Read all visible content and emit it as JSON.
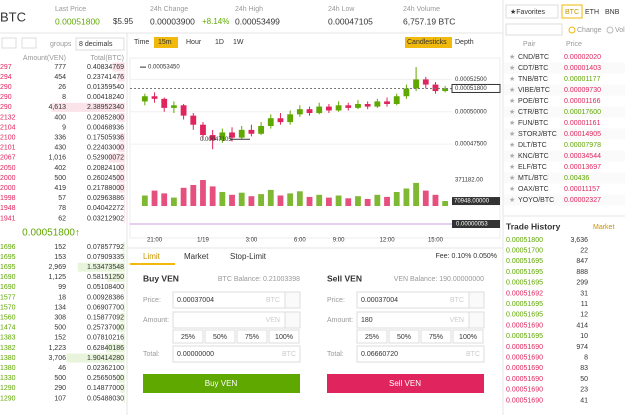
{
  "header": {
    "pair": "BTC",
    "stats": [
      {
        "label": "Last Price",
        "value": "0.00051800",
        "extra": "$5.95"
      },
      {
        "label": "24h Change",
        "value": "0.00003900",
        "extra": "+8.14%"
      },
      {
        "label": "24h High",
        "value": "0.00053499"
      },
      {
        "label": "24h Low",
        "value": "0.00047105"
      },
      {
        "label": "24h Volume",
        "value": "6,757.19 BTC"
      }
    ]
  },
  "order_book": {
    "groups_label": "groups",
    "decimals": "8 decimals",
    "columns": [
      "Amount(VEN)",
      "Total(BTC)"
    ],
    "asks": [
      [
        "297",
        "777",
        "0.40834769"
      ],
      [
        "294",
        "454",
        "0.23741476"
      ],
      [
        "290",
        "26",
        "0.01359540"
      ],
      [
        "290",
        "8",
        "0.00418240"
      ],
      [
        "290",
        "4,613",
        "2.38952340"
      ],
      [
        "2132",
        "400",
        "0.20852800"
      ],
      [
        "2104",
        "9",
        "0.00468936"
      ],
      [
        "2100",
        "336",
        "0.17505936"
      ],
      [
        "2101",
        "430",
        "0.22403000"
      ],
      [
        "2067",
        "1,016",
        "0.52900072"
      ],
      [
        "2050",
        "402",
        "0.20824100"
      ],
      [
        "2000",
        "500",
        "0.26024500"
      ],
      [
        "2000",
        "419",
        "0.21788000"
      ],
      [
        "1998",
        "57",
        "0.02963886"
      ],
      [
        "1948",
        "78",
        "0.04042272"
      ],
      [
        "1941",
        "62",
        "0.03212902"
      ]
    ],
    "last": "0.00051800↑",
    "bids": [
      [
        "1696",
        "152",
        "0.07857792"
      ],
      [
        "1695",
        "153",
        "0.07909335"
      ],
      [
        "1695",
        "2,969",
        "1.53473548"
      ],
      [
        "1690",
        "1,125",
        "0.58151250"
      ],
      [
        "1690",
        "99",
        "0.05108400"
      ],
      [
        "1577",
        "18",
        "0.00928386"
      ],
      [
        "1570",
        "134",
        "0.06907700"
      ],
      [
        "1560",
        "308",
        "0.15877092"
      ],
      [
        "1474",
        "500",
        "0.25737000"
      ],
      [
        "1383",
        "152",
        "0.07810216"
      ],
      [
        "1382",
        "1,223",
        "0.62840186"
      ],
      [
        "1380",
        "3,706",
        "1.90414280"
      ],
      [
        "1380",
        "46",
        "0.02362100"
      ],
      [
        "1330",
        "500",
        "0.25650500"
      ],
      [
        "1290",
        "290",
        "0.14877000"
      ],
      [
        "1290",
        "107",
        "0.05488030"
      ]
    ]
  },
  "toolbar": {
    "intervals": [
      "Time",
      "15m",
      "Hour",
      "1D",
      "1W"
    ],
    "modes": [
      "Candlesticks",
      "Depth"
    ]
  },
  "chart_data": {
    "type": "candlestick",
    "categories": [
      null,
      "21:00",
      null,
      null,
      null,
      null,
      "1/19",
      null,
      null,
      null,
      null,
      "3:00",
      null,
      null,
      null,
      null,
      "6:00",
      null,
      null,
      null,
      "9:00",
      null,
      null,
      null,
      null,
      "12:00",
      null,
      null,
      null,
      null,
      "15:00",
      null
    ],
    "open": [
      0.000508,
      0.000512,
      0.00051,
      0.000503,
      0.000505,
      0.000497,
      0.00049,
      0.000482,
      0.000478,
      0.000484,
      0.00048,
      0.000486,
      0.000483,
      0.000489,
      0.000495,
      0.000492,
      0.000498,
      0.000502,
      0.000499,
      0.000504,
      0.000501,
      0.000505,
      0.000503,
      0.000506,
      0.000504,
      0.000508,
      0.000506,
      0.000512,
      0.000518,
      0.000525,
      0.000521,
      0.000516
    ],
    "close": [
      0.000512,
      0.00051,
      0.000503,
      0.000505,
      0.000497,
      0.00049,
      0.000482,
      0.000478,
      0.000484,
      0.00048,
      0.000486,
      0.000483,
      0.000489,
      0.000495,
      0.000492,
      0.000498,
      0.000502,
      0.000499,
      0.000504,
      0.000501,
      0.000505,
      0.000503,
      0.000506,
      0.000504,
      0.000508,
      0.000506,
      0.000512,
      0.000518,
      0.000525,
      0.000521,
      0.000516,
      0.000518
    ],
    "high": [
      0.000514,
      0.000515,
      0.000511,
      0.000508,
      0.000506,
      0.000499,
      0.000492,
      0.000486,
      0.000487,
      0.000488,
      0.000489,
      0.00049,
      0.000492,
      0.000498,
      0.000499,
      0.000501,
      0.000505,
      0.000504,
      0.000507,
      0.000506,
      0.000508,
      0.000507,
      0.000509,
      0.000508,
      0.00051,
      0.000511,
      0.000514,
      0.000521,
      0.0005345,
      0.000527,
      0.000523,
      0.00052
    ],
    "low": [
      0.000505,
      0.000507,
      0.0005,
      0.000499,
      0.000494,
      0.000486,
      0.000478,
      0.00047105,
      0.000476,
      0.000477,
      0.000479,
      0.000481,
      0.000482,
      0.000487,
      0.00049,
      0.00049,
      0.000496,
      0.000497,
      0.000498,
      0.000499,
      0.0005,
      0.000501,
      0.000502,
      0.000502,
      0.000503,
      0.000504,
      0.000505,
      0.00051,
      0.000516,
      0.000518,
      0.000514,
      0.000515
    ],
    "volume": [
      150000,
      220000,
      180000,
      120000,
      260000,
      300000,
      371182,
      280000,
      200000,
      160000,
      190000,
      140000,
      170000,
      230000,
      150000,
      180000,
      210000,
      130000,
      160000,
      120000,
      150000,
      110000,
      140000,
      100000,
      160000,
      130000,
      200000,
      250000,
      330000,
      220000,
      160000,
      70948
    ],
    "ylim": [
      0.000455,
      0.00054
    ],
    "yticks": [
      {
        "value": 0.000525,
        "label": "0.00052500"
      },
      {
        "value": 0.0005,
        "label": "0.00050000"
      },
      {
        "value": 0.000475,
        "label": "0.00047500"
      }
    ],
    "last_price": {
      "value": 0.000518,
      "label": "0.00051800"
    },
    "high_label": {
      "value": 0.0005345,
      "label": "0.00053450"
    },
    "low_label": {
      "value": 0.00047105,
      "label": "0.00047105"
    },
    "volume_ylim": [
      0,
      400000
    ],
    "volume_max": {
      "value": 371182,
      "label": "371182.00"
    },
    "volume_last": {
      "value": 70948,
      "label": "70948.00000"
    },
    "macd_label": "0.00000053",
    "up_color": "#5fa800",
    "down_color": "#e0245e"
  },
  "order_form": {
    "tabs": [
      "Limit",
      "Market",
      "Stop-Limit"
    ],
    "fee": "Fee: 0.10% 0.050%",
    "field_labels": [
      "Price:",
      "Amount:",
      "Total:"
    ],
    "percents": [
      "25%",
      "50%",
      "75%",
      "100%"
    ],
    "buy": {
      "title": "Buy VEN",
      "balance": "BTC Balance: 0.21003398",
      "price": "0.00037004",
      "units": [
        "BTC",
        "VEN",
        "BTC"
      ],
      "total": "0.00000000",
      "button": "Buy VEN"
    },
    "sell": {
      "title": "Sell VEN",
      "balance": "VEN Balance: 190.00000000",
      "price": "0.00037004",
      "amount": "180",
      "units": [
        "BTC",
        "VEN",
        "BTC"
      ],
      "total": "0.06660720",
      "button": "Sell VEN"
    }
  },
  "markets": {
    "favorites": "★Favorites",
    "tabs": [
      "BTC",
      "ETH",
      "BNB"
    ],
    "toggles": [
      "Change",
      "Volume"
    ],
    "columns": [
      "Pair",
      "Price"
    ],
    "rows": [
      [
        "CND/BTC",
        "0.00002020"
      ],
      [
        "CDT/BTC",
        "0.00001403"
      ],
      [
        "TNB/BTC",
        "0.00001177"
      ],
      [
        "VIBE/BTC",
        "0.00009730"
      ],
      [
        "POE/BTC",
        "0.00001166"
      ],
      [
        "CTR/BTC",
        "0.00017600"
      ],
      [
        "FUN/BTC",
        "0.00001161"
      ],
      [
        "STORJ/BTC",
        "0.00014905"
      ],
      [
        "DLT/BTC",
        "0.00007978"
      ],
      [
        "KNC/BTC",
        "0.00034544"
      ],
      [
        "ELF/BTC",
        "0.00013697"
      ],
      [
        "MTL/BTC",
        "0.00436"
      ],
      [
        "OAX/BTC",
        "0.00011157"
      ],
      [
        "YOYO/BTC",
        "0.00002327"
      ]
    ]
  },
  "trade_history": {
    "title": "Trade History",
    "tab": "Market",
    "rows": [
      [
        "0.00051800",
        "3,636",
        "#5fa800"
      ],
      [
        "0.00051700",
        "22",
        "#5fa800"
      ],
      [
        "0.00051695",
        "847",
        "#5fa800"
      ],
      [
        "0.00051695",
        "888",
        "#5fa800"
      ],
      [
        "0.00051695",
        "299",
        "#5fa800"
      ],
      [
        "0.00051692",
        "31",
        "#e0245e"
      ],
      [
        "0.00051695",
        "11",
        "#5fa800"
      ],
      [
        "0.00051695",
        "12",
        "#5fa800"
      ],
      [
        "0.00051690",
        "414",
        "#e0245e"
      ],
      [
        "0.00051695",
        "10",
        "#5fa800"
      ],
      [
        "0.00051690",
        "974",
        "#e0245e"
      ],
      [
        "0.00051690",
        "8",
        "#e0245e"
      ],
      [
        "0.00051690",
        "83",
        "#e0245e"
      ],
      [
        "0.00051690",
        "50",
        "#e0245e"
      ],
      [
        "0.00051690",
        "23",
        "#e0245e"
      ],
      [
        "0.00051690",
        "41",
        "#e0245e"
      ]
    ]
  }
}
